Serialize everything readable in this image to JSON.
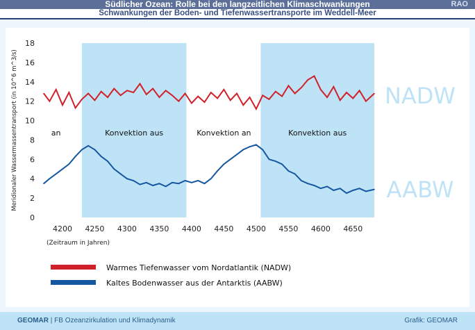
{
  "header": {
    "title": "Südlicher Ozean: Rolle bei den langzeitlichen Klimaschwankungen",
    "badge": "RAO",
    "subtitle": "Schwankungen der Boden- und Tiefenwassertransporte im Weddell-Meer"
  },
  "footer": {
    "org": "GEOMAR",
    "dept": " | FB Ozeanzirkulation und Klimadynamik",
    "credit": "Grafik: GEOMAR"
  },
  "chart_data": {
    "type": "line",
    "ylabel": "Meridionaler Wassermassentransport  (in 10^6 m^3/s)",
    "xlabel": "(Zeitraum in Jahren)",
    "ylim": [
      0,
      18
    ],
    "xlim": [
      4171,
      4683
    ],
    "yticks": [
      0,
      2,
      4,
      6,
      8,
      10,
      12,
      14,
      16,
      18
    ],
    "xticks": [
      4200,
      4250,
      4300,
      4350,
      4400,
      4450,
      4500,
      4550,
      4600,
      4650
    ],
    "bands": [
      {
        "from": 4230,
        "to": 4392,
        "label": "Konvektion aus",
        "color": "#bfe3f6"
      },
      {
        "from": 4507,
        "to": 4683,
        "label": "Konvektion aus",
        "color": "#bfe3f6"
      }
    ],
    "band_labels": [
      {
        "x": 4190,
        "text": "an"
      },
      {
        "x": 4311,
        "text": "Konvektion aus"
      },
      {
        "x": 4450,
        "text": "Konvektion an"
      },
      {
        "x": 4595,
        "text": "Konvektion aus"
      }
    ],
    "x": [
      4171,
      4180,
      4190,
      4200,
      4210,
      4220,
      4230,
      4240,
      4250,
      4260,
      4270,
      4280,
      4290,
      4300,
      4310,
      4320,
      4330,
      4340,
      4350,
      4360,
      4370,
      4380,
      4390,
      4400,
      4410,
      4420,
      4430,
      4440,
      4450,
      4460,
      4470,
      4480,
      4490,
      4500,
      4510,
      4520,
      4530,
      4540,
      4550,
      4560,
      4570,
      4580,
      4590,
      4600,
      4610,
      4620,
      4630,
      4640,
      4650,
      4660,
      4670,
      4683
    ],
    "series": [
      {
        "name": "Warmes Tiefenwasser vom Nordatlantik (NADW)",
        "short": "NADW",
        "color": "#d0212b",
        "label_color": "#bfe3f6",
        "values": [
          12.8,
          12.0,
          13.2,
          11.6,
          12.9,
          11.3,
          12.2,
          12.8,
          12.1,
          13.0,
          12.4,
          13.3,
          12.6,
          13.1,
          12.9,
          13.8,
          12.7,
          13.3,
          12.4,
          13.1,
          12.6,
          12.0,
          12.8,
          11.8,
          12.5,
          11.9,
          12.9,
          12.3,
          13.2,
          12.1,
          12.8,
          11.6,
          12.4,
          11.2,
          12.6,
          12.2,
          13.0,
          12.5,
          13.6,
          12.8,
          13.4,
          14.2,
          14.6,
          13.2,
          12.4,
          13.5,
          12.1,
          12.9,
          12.3,
          13.1,
          12.0,
          12.8
        ]
      },
      {
        "name": "Kaltes Bodenwasser aus der Antarktis (AABW)",
        "short": "AABW",
        "color": "#1557a0",
        "label_color": "#bfe3f6",
        "values": [
          3.5,
          4.0,
          4.5,
          5.0,
          5.5,
          6.3,
          7.0,
          7.4,
          7.0,
          6.3,
          5.8,
          5.0,
          4.5,
          4.0,
          3.8,
          3.4,
          3.6,
          3.3,
          3.5,
          3.2,
          3.6,
          3.5,
          3.8,
          3.6,
          3.8,
          3.5,
          4.0,
          4.8,
          5.5,
          6.0,
          6.5,
          7.0,
          7.3,
          7.5,
          7.0,
          6.0,
          5.8,
          5.5,
          4.8,
          4.5,
          3.8,
          3.5,
          3.3,
          3.0,
          3.2,
          2.8,
          3.0,
          2.5,
          2.8,
          3.0,
          2.7,
          2.9
        ]
      }
    ]
  }
}
